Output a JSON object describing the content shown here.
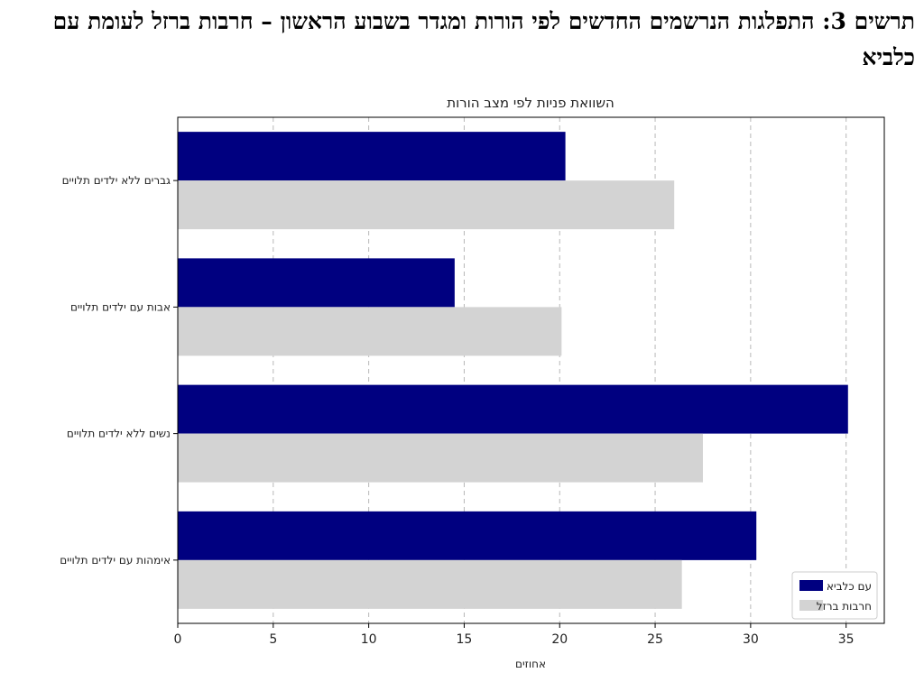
{
  "document": {
    "title": "תרשים 3: התפלגות הנרשמים החדשים לפי הורות ומגדר בשבוע הראשון – חרבות ברזל לעומת עם כלביא"
  },
  "chart_data": {
    "type": "bar",
    "orientation": "horizontal",
    "title": "השוואת פניות לפי מצב הורות",
    "xlabel": "אחוזים",
    "ylabel": "",
    "xlim": [
      0,
      37
    ],
    "xticks": [
      0,
      5,
      10,
      15,
      20,
      25,
      30,
      35
    ],
    "grid": "vertical-dashed",
    "legend_position": "bottom-right",
    "categories": [
      "גברים ללא ילדים תלויים",
      "אבות עם ילדים תלויים",
      "נשים ללא ילדים תלויים",
      "אימהות עם ילדים תלויים"
    ],
    "series": [
      {
        "name": "עם כלביא",
        "color": "#000080",
        "values": [
          20.3,
          14.5,
          35.1,
          30.3
        ]
      },
      {
        "name": "חרבות ברזל",
        "color": "#d3d3d3",
        "values": [
          26.0,
          20.1,
          27.5,
          26.4
        ]
      }
    ]
  }
}
